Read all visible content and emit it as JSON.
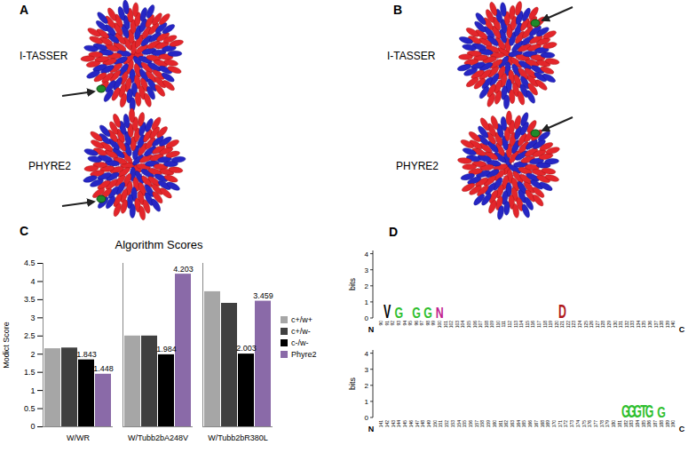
{
  "panels": [
    "A",
    "B",
    "C",
    "D"
  ],
  "structures": [
    {
      "models": [
        "I-TASSER",
        "PHYRE2"
      ]
    },
    {
      "models": [
        "I-TASSER",
        "PHYRE2"
      ]
    }
  ],
  "chart_data": {
    "type": "bar",
    "title": "Algorithm Scores",
    "y_label": "Modict Score",
    "categories": [
      "W/WR",
      "W/Tubb2bA248V",
      "W/Tubb2bR380L"
    ],
    "series": [
      {
        "name": "c+/w+",
        "color": "#a6a6a6",
        "values": [
          2.15,
          2.5,
          3.72
        ]
      },
      {
        "name": "c+/w-",
        "color": "#404040",
        "values": [
          2.17,
          2.5,
          3.4
        ]
      },
      {
        "name": "c-/w-",
        "color": "#000000",
        "values": [
          1.843,
          1.984,
          2.003
        ],
        "data_labels": true
      },
      {
        "name": "Phyre2",
        "color": "#8a6aa8",
        "values": [
          1.448,
          4.203,
          3.459
        ],
        "data_labels": true
      }
    ],
    "ylim": [
      0,
      4.5
    ],
    "yticks": [
      0,
      0.5,
      1,
      1.5,
      2,
      2.5,
      3,
      3.5,
      4,
      4.5
    ],
    "legend": "right",
    "grid": false
  },
  "logo": {
    "y_label": "bits",
    "ylim": [
      0,
      4.2
    ],
    "yticks": [
      0,
      1,
      2,
      3,
      4
    ],
    "ends": [
      "N",
      "C"
    ],
    "rows": [
      {
        "positions": [
          90,
          91,
          92,
          93,
          94,
          95,
          96,
          97,
          98,
          99,
          100,
          101,
          102,
          103,
          104,
          105,
          106,
          107,
          108,
          109,
          110,
          111,
          112,
          113,
          114,
          115,
          116,
          117,
          118,
          119,
          120,
          121,
          122,
          123,
          124,
          125,
          126,
          127,
          128,
          129,
          130,
          131,
          132,
          133,
          134,
          135,
          136,
          137,
          138,
          139,
          140
        ],
        "letters": [
          {
            "pos": 91,
            "letter": "V",
            "bits": 0.9,
            "color": "#000000"
          },
          {
            "pos": 93,
            "letter": "G",
            "bits": 0.7,
            "color": "#2fbf2f"
          },
          {
            "pos": 96,
            "letter": "G",
            "bits": 0.7,
            "color": "#2fbf2f"
          },
          {
            "pos": 98,
            "letter": "G",
            "bits": 0.7,
            "color": "#2fbf2f"
          },
          {
            "pos": 100,
            "letter": "N",
            "bits": 0.7,
            "color": "#c0208f"
          },
          {
            "pos": 121,
            "letter": "D",
            "bits": 0.9,
            "color": "#b01818"
          }
        ]
      },
      {
        "positions": [
          141,
          142,
          143,
          144,
          145,
          146,
          147,
          148,
          149,
          150,
          151,
          152,
          153,
          154,
          155,
          156,
          157,
          158,
          159,
          160,
          161,
          162,
          163,
          164,
          165,
          166,
          167,
          168,
          169,
          170,
          171,
          172,
          173,
          174,
          175,
          176,
          177,
          178,
          179,
          180,
          181,
          182,
          183,
          184,
          185,
          186,
          187,
          188,
          189,
          190
        ],
        "letters": [
          {
            "pos": 182,
            "letter": "G",
            "bits": 0.8,
            "color": "#2fbf2f"
          },
          {
            "pos": 183,
            "letter": "G",
            "bits": 0.8,
            "color": "#2fbf2f"
          },
          {
            "pos": 184,
            "letter": "G",
            "bits": 0.8,
            "color": "#2fbf2f"
          },
          {
            "pos": 185,
            "letter": "T",
            "bits": 0.8,
            "color": "#2fbf2f"
          },
          {
            "pos": 186,
            "letter": "G",
            "bits": 0.8,
            "color": "#2fbf2f"
          },
          {
            "pos": 188,
            "letter": "G",
            "bits": 0.7,
            "color": "#2fbf2f"
          }
        ]
      }
    ]
  }
}
